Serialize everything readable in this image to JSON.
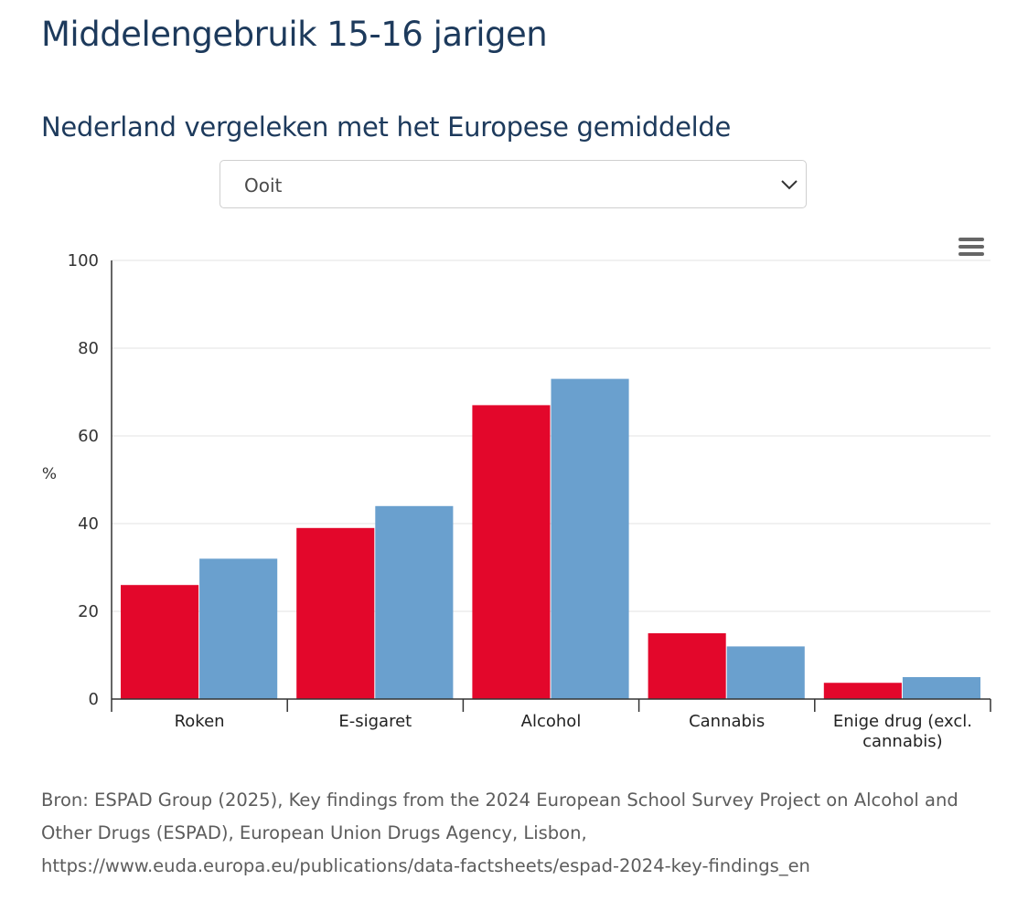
{
  "header": {
    "title": "Middelengebruik 15-16 jarigen"
  },
  "section": {
    "subtitle": "Nederland vergeleken met het Europese gemiddelde"
  },
  "period_select": {
    "selected": "Ooit"
  },
  "chart_menu": {
    "icon": "hamburger-menu-icon"
  },
  "chart_data": {
    "type": "bar",
    "categories": [
      "Roken",
      "E-sigaret",
      "Alcohol",
      "Cannabis",
      "Enige drug (excl. cannabis)"
    ],
    "category_lines": [
      [
        "Roken"
      ],
      [
        "E-sigaret"
      ],
      [
        "Alcohol"
      ],
      [
        "Cannabis"
      ],
      [
        "Enige drug (excl.",
        "cannabis)"
      ]
    ],
    "series": [
      {
        "values": [
          26,
          39,
          67,
          15,
          3.7
        ],
        "color": "#e3072b"
      },
      {
        "values": [
          32,
          44,
          73,
          12,
          5
        ],
        "color": "#6aa0ce"
      }
    ],
    "ylabel": "%",
    "ylim": [
      0,
      100
    ],
    "yticks": [
      "0",
      "20",
      "40",
      "60",
      "80",
      "100"
    ],
    "grid": true
  },
  "source": {
    "lines": [
      "Bron: ESPAD Group (2025), Key findings from the 2024 European School Survey Project on Alcohol and",
      "Other Drugs (ESPAD), European Union Drugs Agency, Lisbon,",
      "https://www.euda.europa.eu/publications/data-factsheets/espad-2024-key-findings_en"
    ]
  }
}
